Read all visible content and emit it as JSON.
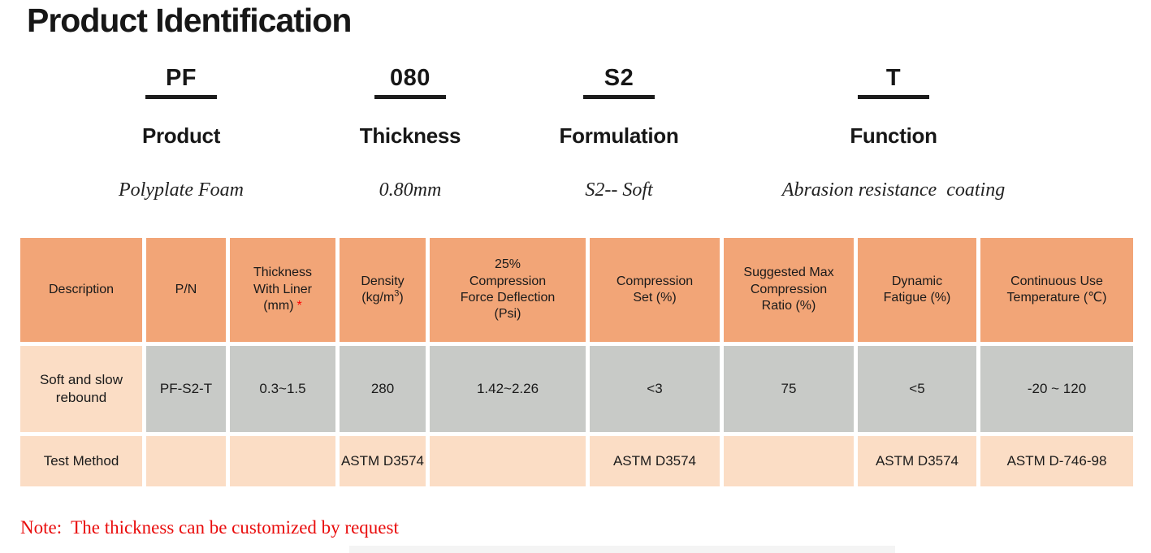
{
  "title": "Product Identification",
  "code_breakdown": [
    {
      "code": "PF",
      "label": "Product",
      "description": "Polyplate Foam"
    },
    {
      "code": "080",
      "label": "Thickness",
      "description": "0.80mm"
    },
    {
      "code": "S2",
      "label": "Formulation",
      "description": "S2-- Soft"
    },
    {
      "code": "T",
      "label": "Function",
      "description": "Abrasion resistance  coating"
    }
  ],
  "table": {
    "columns": [
      {
        "label": "Description"
      },
      {
        "label": "P/N"
      },
      {
        "label": "Thickness\nWith Liner\n(mm)",
        "asterisk": "*"
      },
      {
        "label_pre": "Density\n(kg/m",
        "sup": "3",
        "label_post": ")"
      },
      {
        "label": "25%\nCompression\nForce Deflection\n(Psi)"
      },
      {
        "label": "Compression\nSet (%)"
      },
      {
        "label": "Suggested Max\nCompression\nRatio (%)"
      },
      {
        "label": "Dynamic\nFatigue (%)"
      },
      {
        "label": "Continuous Use\nTemperature (℃)"
      }
    ],
    "rows": [
      {
        "name": "product-row",
        "cells": [
          "Soft and slow rebound",
          "PF-S2-T",
          "0.3~1.5",
          "280",
          "1.42~2.26",
          "<3",
          "75",
          "<5",
          "-20 ~ 120"
        ]
      },
      {
        "name": "test-method-row",
        "cells": [
          "Test Method",
          "",
          "",
          "ASTM D3574",
          "",
          "ASTM D3574",
          "",
          "ASTM D3574",
          "ASTM D-746-98"
        ]
      }
    ]
  },
  "note": "Note:  The thickness can be customized by request",
  "colors": {
    "header_orange": "#F2A577",
    "data_gray": "#C8CAC7",
    "row_peach": "#FBDDC5",
    "underline_black": "#1C1C1C",
    "note_red": "#E90C0C",
    "asterisk_red": "#FF0000"
  }
}
